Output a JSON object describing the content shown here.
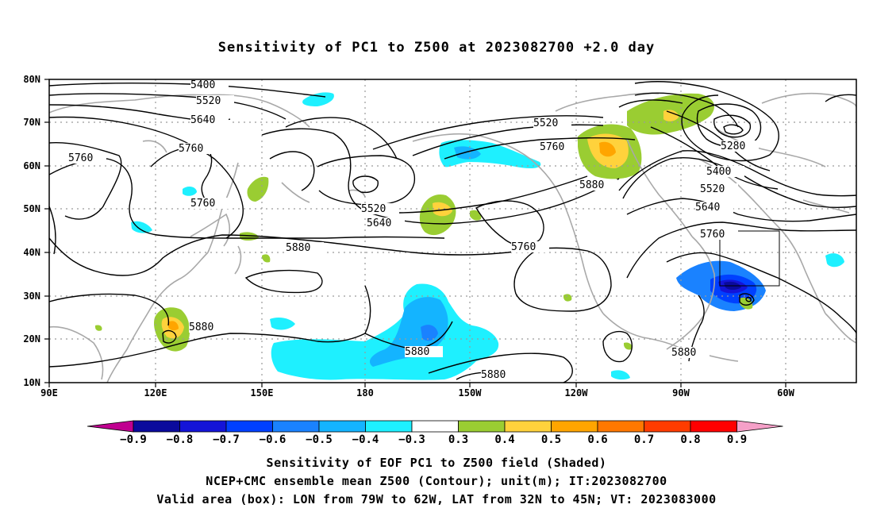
{
  "title": "Sensitivity of PC1 to Z500 at 2023082700 +2.0 day",
  "map": {
    "lat_labels": [
      "80N",
      "70N",
      "60N",
      "50N",
      "40N",
      "30N",
      "20N",
      "10N"
    ],
    "lon_labels": [
      "90E",
      "120E",
      "150E",
      "180",
      "150W",
      "120W",
      "90W",
      "60W"
    ],
    "contour_labels": [
      {
        "text": "5400",
        "id": "c1"
      },
      {
        "text": "5520",
        "id": "c2"
      },
      {
        "text": "5640",
        "id": "c3"
      },
      {
        "text": "5760",
        "id": "c4"
      },
      {
        "text": "5760",
        "id": "c5"
      },
      {
        "text": "5760",
        "id": "c6"
      },
      {
        "text": "5520",
        "id": "c7"
      },
      {
        "text": "5640",
        "id": "c8"
      },
      {
        "text": "5880",
        "id": "c9"
      },
      {
        "text": "5520",
        "id": "c10"
      },
      {
        "text": "5760",
        "id": "c11"
      },
      {
        "text": "5880",
        "id": "c12"
      },
      {
        "text": "5760",
        "id": "c13"
      },
      {
        "text": "5280",
        "id": "c14"
      },
      {
        "text": "5400",
        "id": "c15"
      },
      {
        "text": "5520",
        "id": "c16"
      },
      {
        "text": "5640",
        "id": "c17"
      },
      {
        "text": "5760",
        "id": "c18"
      },
      {
        "text": "5880",
        "id": "c19"
      },
      {
        "text": "5880",
        "id": "c20"
      },
      {
        "text": "5880",
        "id": "c21"
      },
      {
        "text": "5880",
        "id": "c22"
      }
    ],
    "valid_box": {
      "lon_from": "79W",
      "lon_to": "62W",
      "lat_from": "32N",
      "lat_to": "45N"
    }
  },
  "colorbar": {
    "labels": [
      "-0.9",
      "-0.8",
      "-0.7",
      "-0.6",
      "-0.5",
      "-0.4",
      "-0.3",
      "0.3",
      "0.4",
      "0.5",
      "0.6",
      "0.7",
      "0.8",
      "0.9"
    ],
    "colors": [
      "#c00090",
      "#0a0a9c",
      "#1414d8",
      "#0040ff",
      "#1a82ff",
      "#14b4ff",
      "#1ef0ff",
      "#ffffff",
      "#9acd32",
      "#ffd23c",
      "#ffa500",
      "#ff7800",
      "#ff3c00",
      "#ff0000",
      "#f5a0c8"
    ]
  },
  "captions": {
    "line1": "Sensitivity of EOF PC1 to Z500 field (Shaded)",
    "line2": "NCEP+CMC ensemble mean Z500 (Contour); unit(m); IT:2023082700",
    "line3": "Valid area (box): LON from 79W to 62W, LAT from 32N to 45N; VT: 2023083000"
  }
}
